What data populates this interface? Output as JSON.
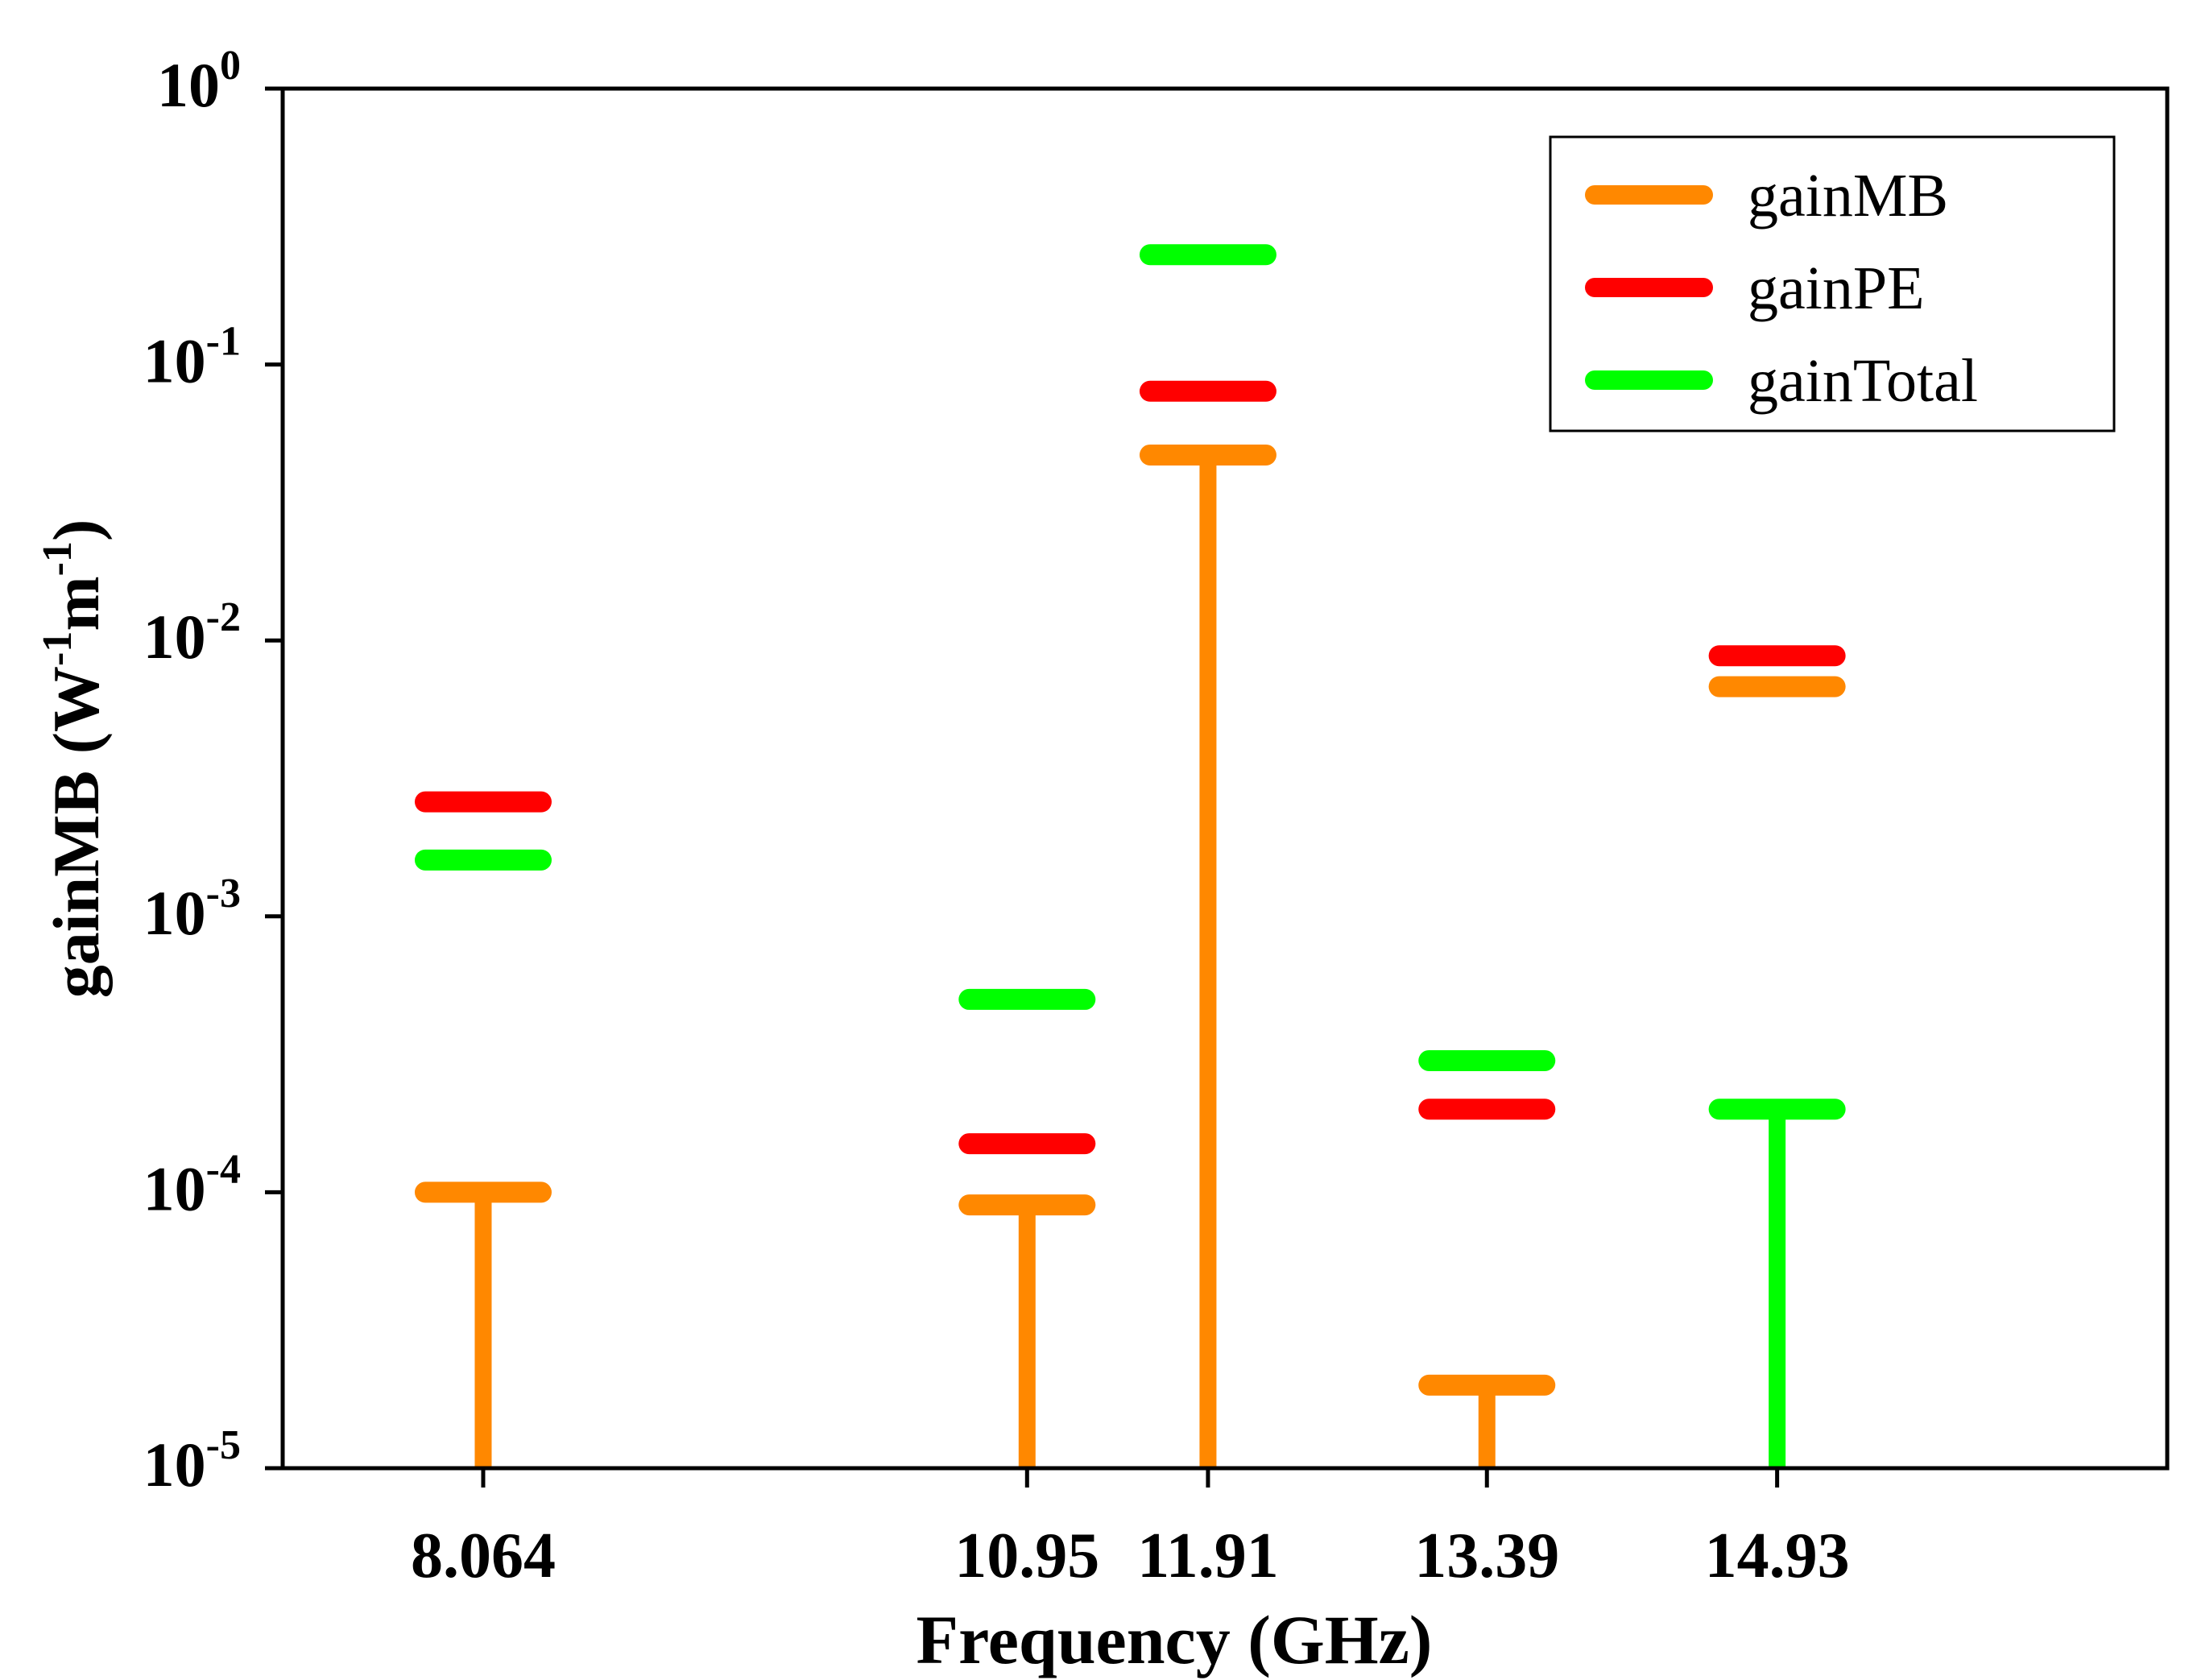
{
  "chart_data": {
    "type": "stem",
    "title": "",
    "xlabel": "Frequency (GHz)",
    "ylabel": {
      "base": "gainMB (W",
      "sup1": "-1",
      "mid": "m",
      "sup2": "-1",
      "end": ")"
    },
    "yscale": "log",
    "ylim": [
      1e-05,
      1
    ],
    "yticks": [
      {
        "base": "10",
        "exp": "-5",
        "value": 1e-05
      },
      {
        "base": "10",
        "exp": "-4",
        "value": 0.0001
      },
      {
        "base": "10",
        "exp": "-3",
        "value": 0.001
      },
      {
        "base": "10",
        "exp": "-2",
        "value": 0.01
      },
      {
        "base": "10",
        "exp": "-1",
        "value": 0.1
      },
      {
        "base": "10",
        "exp": "0",
        "value": 1
      }
    ],
    "xlim": [
      7.0,
      17.0
    ],
    "categories": [
      "8.064",
      "10.95",
      "11.91",
      "13.39",
      "14.93"
    ],
    "x": [
      8.064,
      10.95,
      11.91,
      13.39,
      14.93
    ],
    "series": [
      {
        "name": "gainMB",
        "color": "#ff8800",
        "values": [
          0.0001,
          9e-05,
          0.047,
          2e-05,
          0.0068
        ]
      },
      {
        "name": "gainPE",
        "color": "#ff0000",
        "values": [
          0.0026,
          0.00015,
          0.08,
          0.0002,
          0.0088
        ]
      },
      {
        "name": "gainTotal",
        "color": "#00ff00",
        "values": [
          0.0016,
          0.0005,
          0.25,
          0.0003,
          0.0002
        ]
      }
    ],
    "stems": [
      {
        "x": 8.064,
        "value": 0.0001,
        "series": "gainMB"
      },
      {
        "x": 10.95,
        "value": 9e-05,
        "series": "gainMB"
      },
      {
        "x": 11.91,
        "value": 0.047,
        "series": "gainMB"
      },
      {
        "x": 13.39,
        "value": 2e-05,
        "series": "gainMB"
      },
      {
        "x": 14.93,
        "value": 0.0002,
        "series": "gainTotal"
      }
    ],
    "legend": {
      "position": "top-right",
      "entries": [
        "gainMB",
        "gainPE",
        "gainTotal"
      ]
    },
    "grid": false
  }
}
